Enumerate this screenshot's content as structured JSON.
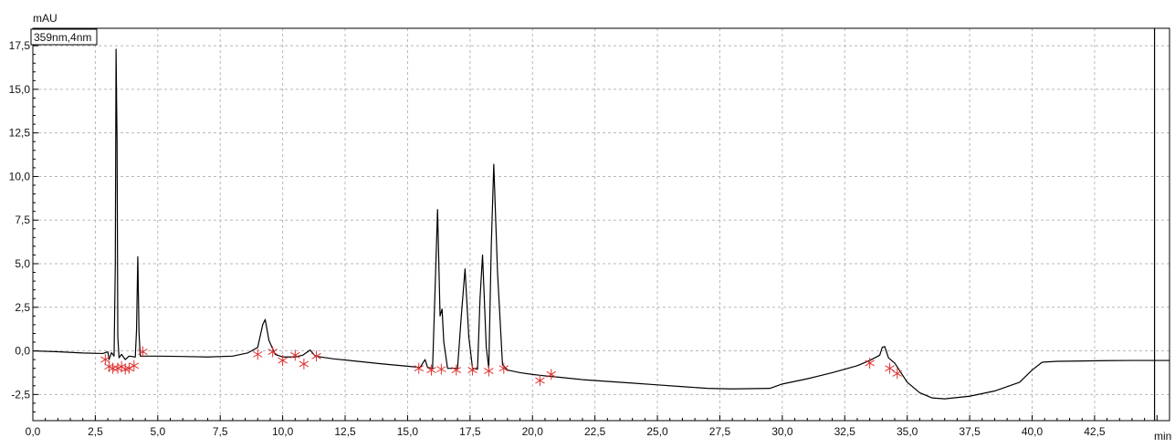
{
  "chart_data": {
    "type": "line",
    "title": "",
    "legend_label": "359nm,4nm",
    "ylabel": "mAU",
    "xlabel": "min",
    "xlim": [
      0,
      45.5
    ],
    "ylim": [
      -4,
      18.5
    ],
    "x_ticks": [
      0,
      2.5,
      5,
      7.5,
      10,
      12.5,
      15,
      17.5,
      20,
      22.5,
      25,
      27.5,
      30,
      32.5,
      35,
      37.5,
      40,
      42.5
    ],
    "x_tick_labels": [
      "0,0",
      "2,5",
      "5,0",
      "7,5",
      "10,0",
      "12,5",
      "15,0",
      "17,5",
      "20,0",
      "22,5",
      "25,0",
      "27,5",
      "30,0",
      "32,5",
      "35,0",
      "37,5",
      "40,0",
      "42,5"
    ],
    "y_ticks": [
      -2.5,
      0,
      2.5,
      5,
      7.5,
      10,
      12.5,
      15,
      17.5
    ],
    "y_tick_labels": [
      "-2,5",
      "0,0",
      "2,5",
      "5,0",
      "7,5",
      "10,0",
      "12,5",
      "15,0",
      "17,5"
    ],
    "grid": true,
    "end_marker_x": 44.9,
    "colors": {
      "trace": "#000000",
      "integration_marks": "#e03030",
      "grid": "#b8b8b8",
      "axis": "#000000"
    },
    "series": [
      {
        "values": [
          [
            0.0,
            0.0
          ],
          [
            1.0,
            -0.05
          ],
          [
            2.0,
            -0.12
          ],
          [
            2.8,
            -0.15
          ],
          [
            3.0,
            -0.05
          ],
          [
            3.05,
            -0.5
          ],
          [
            3.15,
            -0.1
          ],
          [
            3.25,
            -0.3
          ],
          [
            3.3,
            5.0
          ],
          [
            3.33,
            17.3
          ],
          [
            3.37,
            12.0
          ],
          [
            3.4,
            0.8
          ],
          [
            3.45,
            -0.4
          ],
          [
            3.55,
            -0.2
          ],
          [
            3.7,
            -0.5
          ],
          [
            3.85,
            -0.3
          ],
          [
            4.1,
            -0.35
          ],
          [
            4.15,
            1.2
          ],
          [
            4.2,
            5.4
          ],
          [
            4.25,
            1.0
          ],
          [
            4.3,
            -0.3
          ],
          [
            5.0,
            -0.3
          ],
          [
            6.0,
            -0.32
          ],
          [
            7.0,
            -0.35
          ],
          [
            8.0,
            -0.3
          ],
          [
            8.6,
            -0.12
          ],
          [
            9.0,
            0.2
          ],
          [
            9.2,
            1.5
          ],
          [
            9.3,
            1.8
          ],
          [
            9.45,
            0.6
          ],
          [
            9.7,
            -0.2
          ],
          [
            10.0,
            -0.35
          ],
          [
            10.5,
            -0.35
          ],
          [
            10.8,
            -0.25
          ],
          [
            11.1,
            0.05
          ],
          [
            11.3,
            -0.3
          ],
          [
            12.0,
            -0.45
          ],
          [
            13.0,
            -0.6
          ],
          [
            14.0,
            -0.75
          ],
          [
            15.0,
            -0.88
          ],
          [
            15.5,
            -0.95
          ],
          [
            15.7,
            -0.5
          ],
          [
            15.8,
            -0.95
          ],
          [
            16.0,
            -1.0
          ],
          [
            16.1,
            3.5
          ],
          [
            16.2,
            8.1
          ],
          [
            16.3,
            2.0
          ],
          [
            16.38,
            2.4
          ],
          [
            16.45,
            0.5
          ],
          [
            16.6,
            -1.0
          ],
          [
            17.0,
            -1.0
          ],
          [
            17.15,
            2.0
          ],
          [
            17.3,
            4.7
          ],
          [
            17.45,
            0.8
          ],
          [
            17.6,
            -1.0
          ],
          [
            17.8,
            -1.05
          ],
          [
            17.9,
            3.0
          ],
          [
            18.0,
            5.5
          ],
          [
            18.15,
            0.2
          ],
          [
            18.25,
            -1.0
          ],
          [
            18.35,
            6.0
          ],
          [
            18.45,
            10.7
          ],
          [
            18.6,
            4.5
          ],
          [
            18.8,
            -0.8
          ],
          [
            19.0,
            -1.1
          ],
          [
            19.5,
            -1.25
          ],
          [
            20.0,
            -1.35
          ],
          [
            20.3,
            -1.4
          ],
          [
            20.6,
            -1.45
          ],
          [
            21.0,
            -1.5
          ],
          [
            22.0,
            -1.65
          ],
          [
            23.0,
            -1.75
          ],
          [
            24.0,
            -1.85
          ],
          [
            25.0,
            -1.95
          ],
          [
            26.0,
            -2.05
          ],
          [
            27.0,
            -2.15
          ],
          [
            28.0,
            -2.18
          ],
          [
            29.5,
            -2.15
          ],
          [
            30.0,
            -1.9
          ],
          [
            31.0,
            -1.6
          ],
          [
            32.0,
            -1.25
          ],
          [
            33.0,
            -0.85
          ],
          [
            33.5,
            -0.55
          ],
          [
            33.9,
            -0.25
          ],
          [
            34.0,
            0.2
          ],
          [
            34.1,
            0.25
          ],
          [
            34.25,
            -0.4
          ],
          [
            34.5,
            -0.7
          ],
          [
            35.0,
            -1.8
          ],
          [
            35.5,
            -2.4
          ],
          [
            36.0,
            -2.7
          ],
          [
            36.5,
            -2.75
          ],
          [
            37.5,
            -2.6
          ],
          [
            38.5,
            -2.3
          ],
          [
            39.5,
            -1.8
          ],
          [
            40.0,
            -1.1
          ],
          [
            40.4,
            -0.65
          ],
          [
            41.0,
            -0.6
          ],
          [
            42.0,
            -0.58
          ],
          [
            43.0,
            -0.56
          ],
          [
            44.0,
            -0.55
          ],
          [
            45.0,
            -0.55
          ],
          [
            45.5,
            -0.55
          ]
        ]
      }
    ],
    "integration_marks": [
      [
        2.9,
        -0.5
      ],
      [
        3.05,
        -0.9
      ],
      [
        3.2,
        -1.0
      ],
      [
        3.4,
        -1.0
      ],
      [
        3.55,
        -0.9
      ],
      [
        3.7,
        -1.05
      ],
      [
        3.85,
        -1.0
      ],
      [
        4.05,
        -0.85
      ],
      [
        4.4,
        -0.05
      ],
      [
        9.0,
        -0.2
      ],
      [
        9.6,
        -0.05
      ],
      [
        10.0,
        -0.55
      ],
      [
        10.5,
        -0.25
      ],
      [
        10.85,
        -0.75
      ],
      [
        11.35,
        -0.3
      ],
      [
        15.45,
        -1.0
      ],
      [
        15.95,
        -1.1
      ],
      [
        16.35,
        -1.05
      ],
      [
        16.95,
        -1.1
      ],
      [
        17.6,
        -1.1
      ],
      [
        18.25,
        -1.15
      ],
      [
        18.85,
        -1.0
      ],
      [
        20.3,
        -1.7
      ],
      [
        20.75,
        -1.35
      ],
      [
        33.5,
        -0.7
      ],
      [
        34.3,
        -1.0
      ],
      [
        34.6,
        -1.3
      ]
    ]
  }
}
